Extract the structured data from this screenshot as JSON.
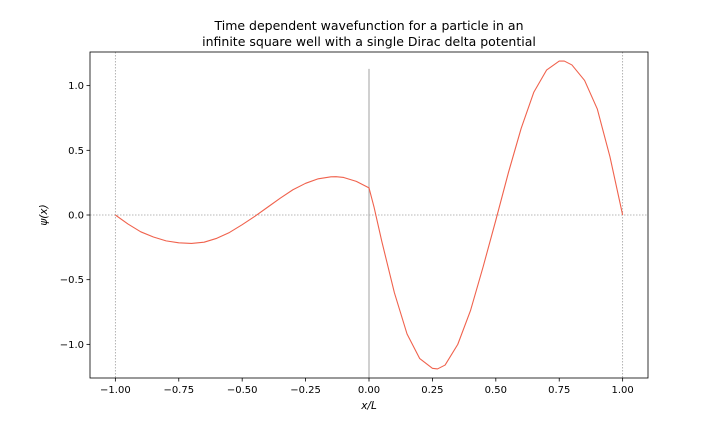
{
  "chart_data": {
    "type": "line",
    "title_line1": "Time dependent wavefunction for a particle in an",
    "title_line2": "infinite square well with a single Dirac delta potential",
    "xlabel": "x/L",
    "ylabel": "ψ(x)",
    "xlim": [
      -1.1,
      1.1
    ],
    "ylim": [
      -1.26,
      1.26
    ],
    "x_ticks": [
      -1.0,
      -0.75,
      -0.5,
      -0.25,
      0.0,
      0.25,
      0.5,
      0.75,
      1.0
    ],
    "x_tick_labels": [
      "−1.00",
      "−0.75",
      "−0.50",
      "−0.25",
      "0.00",
      "0.25",
      "0.50",
      "0.75",
      "1.00"
    ],
    "y_ticks": [
      -1.0,
      -0.5,
      0.0,
      0.5,
      1.0
    ],
    "y_tick_labels": [
      "−1.0",
      "−0.5",
      "0.0",
      "0.5",
      "1.0"
    ],
    "line_color": "#f0624d",
    "reference_color": "#a0a0a0",
    "wall_positions": [
      -1.0,
      1.0
    ],
    "delta_position": 0.0,
    "delta_height": 1.13,
    "series": [
      {
        "points": [
          [
            -1.0,
            0.0
          ],
          [
            -0.95,
            -0.07
          ],
          [
            -0.9,
            -0.13
          ],
          [
            -0.85,
            -0.17
          ],
          [
            -0.8,
            -0.2
          ],
          [
            -0.75,
            -0.215
          ],
          [
            -0.7,
            -0.22
          ],
          [
            -0.65,
            -0.21
          ],
          [
            -0.6,
            -0.18
          ],
          [
            -0.55,
            -0.135
          ],
          [
            -0.5,
            -0.075
          ],
          [
            -0.45,
            -0.01
          ],
          [
            -0.4,
            0.06
          ],
          [
            -0.35,
            0.13
          ],
          [
            -0.3,
            0.195
          ],
          [
            -0.25,
            0.245
          ],
          [
            -0.2,
            0.28
          ],
          [
            -0.15,
            0.295
          ],
          [
            -0.13,
            0.296
          ],
          [
            -0.1,
            0.29
          ],
          [
            -0.05,
            0.26
          ],
          [
            0.0,
            0.21
          ],
          [
            0.02,
            0.06
          ],
          [
            0.05,
            -0.2
          ],
          [
            0.1,
            -0.6
          ],
          [
            0.15,
            -0.92
          ],
          [
            0.2,
            -1.11
          ],
          [
            0.25,
            -1.185
          ],
          [
            0.27,
            -1.19
          ],
          [
            0.3,
            -1.16
          ],
          [
            0.35,
            -1.0
          ],
          [
            0.4,
            -0.74
          ],
          [
            0.45,
            -0.4
          ],
          [
            0.5,
            -0.04
          ],
          [
            0.55,
            0.33
          ],
          [
            0.6,
            0.67
          ],
          [
            0.65,
            0.95
          ],
          [
            0.7,
            1.12
          ],
          [
            0.75,
            1.19
          ],
          [
            0.77,
            1.19
          ],
          [
            0.8,
            1.16
          ],
          [
            0.85,
            1.04
          ],
          [
            0.9,
            0.82
          ],
          [
            0.95,
            0.45
          ],
          [
            1.0,
            0.0
          ]
        ]
      }
    ]
  }
}
